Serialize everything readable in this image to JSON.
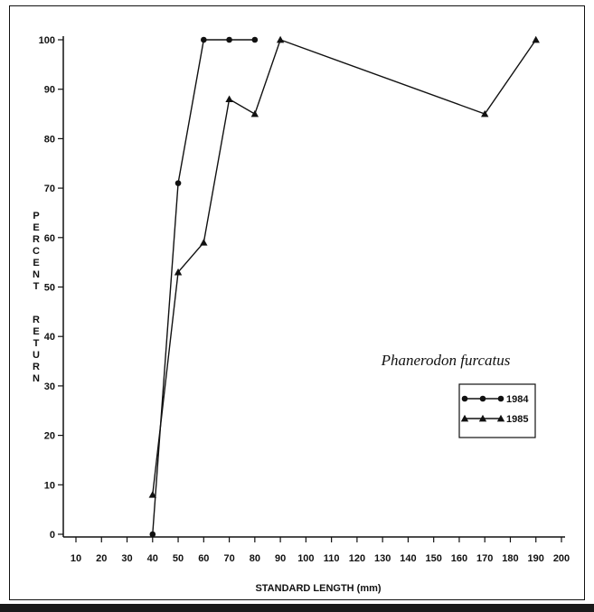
{
  "chart_data": {
    "type": "line",
    "title": "Phanerodon furcatus",
    "xlabel": "STANDARD LENGTH (mm)",
    "ylabel": "PERCENT RETURN",
    "xlim": [
      10,
      200
    ],
    "ylim": [
      0,
      100
    ],
    "xticks": [
      10,
      20,
      30,
      40,
      50,
      60,
      70,
      80,
      90,
      100,
      110,
      120,
      130,
      140,
      150,
      160,
      170,
      180,
      190,
      200
    ],
    "yticks": [
      0,
      10,
      20,
      30,
      40,
      50,
      60,
      70,
      80,
      90,
      100
    ],
    "legend_position": "right",
    "series": [
      {
        "name": "1984",
        "marker": "circle",
        "x": [
          40,
          50,
          60,
          70,
          80
        ],
        "y": [
          0,
          71,
          100,
          100,
          100
        ]
      },
      {
        "name": "1985",
        "marker": "triangle",
        "x": [
          40,
          50,
          60,
          70,
          80,
          90,
          170,
          190
        ],
        "y": [
          8,
          53,
          59,
          88,
          85,
          100,
          85,
          100
        ]
      }
    ]
  }
}
